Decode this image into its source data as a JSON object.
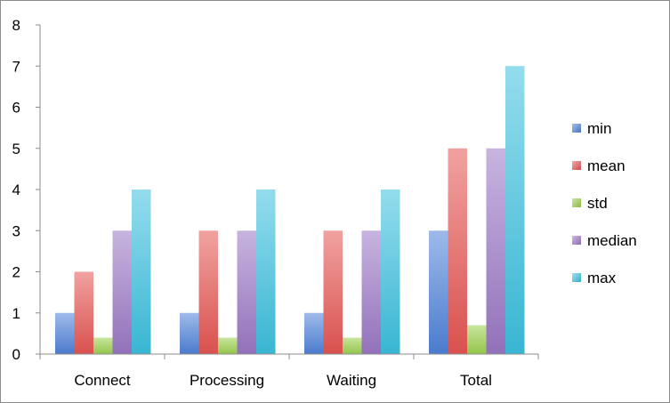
{
  "chart_data": {
    "type": "bar",
    "categories": [
      "Connect",
      "Processing",
      "Waiting",
      "Total"
    ],
    "series": [
      {
        "name": "min",
        "values": [
          1,
          1,
          1,
          3
        ],
        "color": "#4f81d8"
      },
      {
        "name": "mean",
        "values": [
          2,
          3,
          3,
          5
        ],
        "color": "#e45552"
      },
      {
        "name": "std",
        "values": [
          0.4,
          0.4,
          0.4,
          0.7
        ],
        "color": "#9bcf4e"
      },
      {
        "name": "median",
        "values": [
          3,
          3,
          3,
          5
        ],
        "color": "#9a77c4"
      },
      {
        "name": "max",
        "values": [
          4,
          4,
          4,
          7
        ],
        "color": "#3cc0de"
      }
    ],
    "ylim": [
      0,
      8
    ],
    "yticks": [
      "0",
      "1",
      "2",
      "3",
      "4",
      "5",
      "6",
      "7",
      "8"
    ],
    "grid": false,
    "legend_position": "right",
    "title": "",
    "xlabel": "",
    "ylabel": ""
  }
}
